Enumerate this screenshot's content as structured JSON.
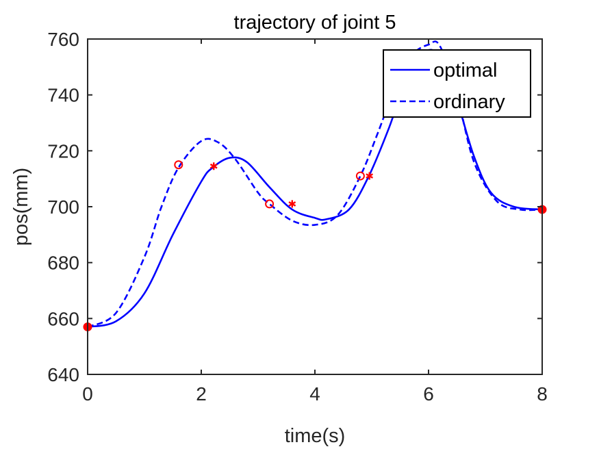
{
  "chart_data": {
    "type": "line",
    "title": "trajectory of joint 5",
    "xlabel": "time(s)",
    "ylabel": "pos(mm)",
    "xlim": [
      0,
      8
    ],
    "ylim": [
      640,
      760
    ],
    "xticks": [
      "0",
      "2",
      "4",
      "6",
      "8"
    ],
    "yticks": [
      "640",
      "660",
      "680",
      "700",
      "720",
      "740",
      "760"
    ],
    "grid": false,
    "legend_position": "top-right",
    "series": [
      {
        "name": "optimal",
        "style": "solid",
        "color": "#0000ff",
        "x": [
          0,
          0.5,
          1.0,
          1.5,
          2.0,
          2.2,
          2.5,
          2.8,
          3.2,
          3.6,
          4.0,
          4.2,
          4.6,
          4.95,
          5.3,
          5.6,
          5.9,
          6.2,
          6.5,
          6.8,
          7.1,
          7.5,
          8.0
        ],
        "y": [
          657,
          659,
          669,
          690,
          709,
          714,
          717.5,
          716,
          707,
          699,
          696,
          695.5,
          699,
          711,
          728,
          745,
          755,
          754,
          738,
          718,
          705,
          700,
          699
        ]
      },
      {
        "name": "ordinary",
        "style": "dashed",
        "color": "#0000ff",
        "x": [
          0,
          0.5,
          1.0,
          1.3,
          1.6,
          2.0,
          2.3,
          2.6,
          3.0,
          3.2,
          3.6,
          4.0,
          4.4,
          4.8,
          5.1,
          5.4,
          5.7,
          6.0,
          6.2,
          6.5,
          6.8,
          7.2,
          7.6,
          8.0
        ],
        "y": [
          657,
          662,
          682,
          700,
          714,
          723.5,
          723,
          717,
          705,
          701,
          695,
          693.5,
          697,
          711,
          726,
          742,
          754,
          758,
          757.5,
          740,
          716,
          702,
          699,
          699
        ]
      }
    ],
    "markers": [
      {
        "name": "endpoints",
        "shape": "filled-circle",
        "color": "#ff0000",
        "x": [
          0,
          8
        ],
        "y": [
          657,
          699
        ]
      },
      {
        "name": "ordinary waypoints",
        "shape": "open-circle",
        "color": "#ff0000",
        "x": [
          1.6,
          3.2,
          4.8
        ],
        "y": [
          715,
          701,
          711
        ]
      },
      {
        "name": "optimal waypoints",
        "shape": "asterisk",
        "color": "#ff0000",
        "x": [
          2.22,
          3.6,
          4.96
        ],
        "y": [
          714.5,
          701,
          711
        ]
      }
    ]
  }
}
